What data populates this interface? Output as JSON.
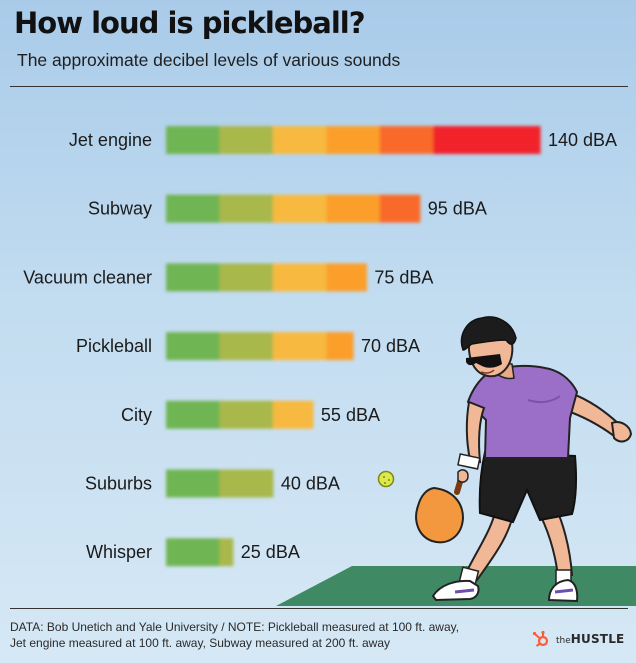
{
  "title": "How loud is pickleball?",
  "subtitle": "The approximate decibel levels of various sounds",
  "footer": {
    "line1": "DATA: Bob Unetich and Yale University / NOTE: Pickleball measured at 100 ft. away,",
    "line2": "Jet engine measured at 100 ft. away, Subway measured at 200 ft. away"
  },
  "brand": {
    "prefix": "the",
    "name": "HUSTLE"
  },
  "illustration": {
    "name": "pickleball-player-icon"
  },
  "chart_data": {
    "type": "bar",
    "orientation": "horizontal",
    "categories": [
      "Jet engine",
      "Subway",
      "Vacuum cleaner",
      "Pickleball",
      "City",
      "Suburbs",
      "Whisper"
    ],
    "values": [
      140,
      95,
      75,
      70,
      55,
      40,
      25
    ],
    "value_labels": [
      "140 dBA",
      "95 dBA",
      "75 dBA",
      "70 dBA",
      "55 dBA",
      "40 dBA",
      "25 dBA"
    ],
    "unit": "dBA",
    "xlim": [
      0,
      140
    ],
    "segment_size": 20,
    "segment_colors": [
      "#6fb553",
      "#a8b84c",
      "#f7b940",
      "#fb9f2c",
      "#f96a2a",
      "#f1232b"
    ],
    "grid": false,
    "legend": "none"
  }
}
